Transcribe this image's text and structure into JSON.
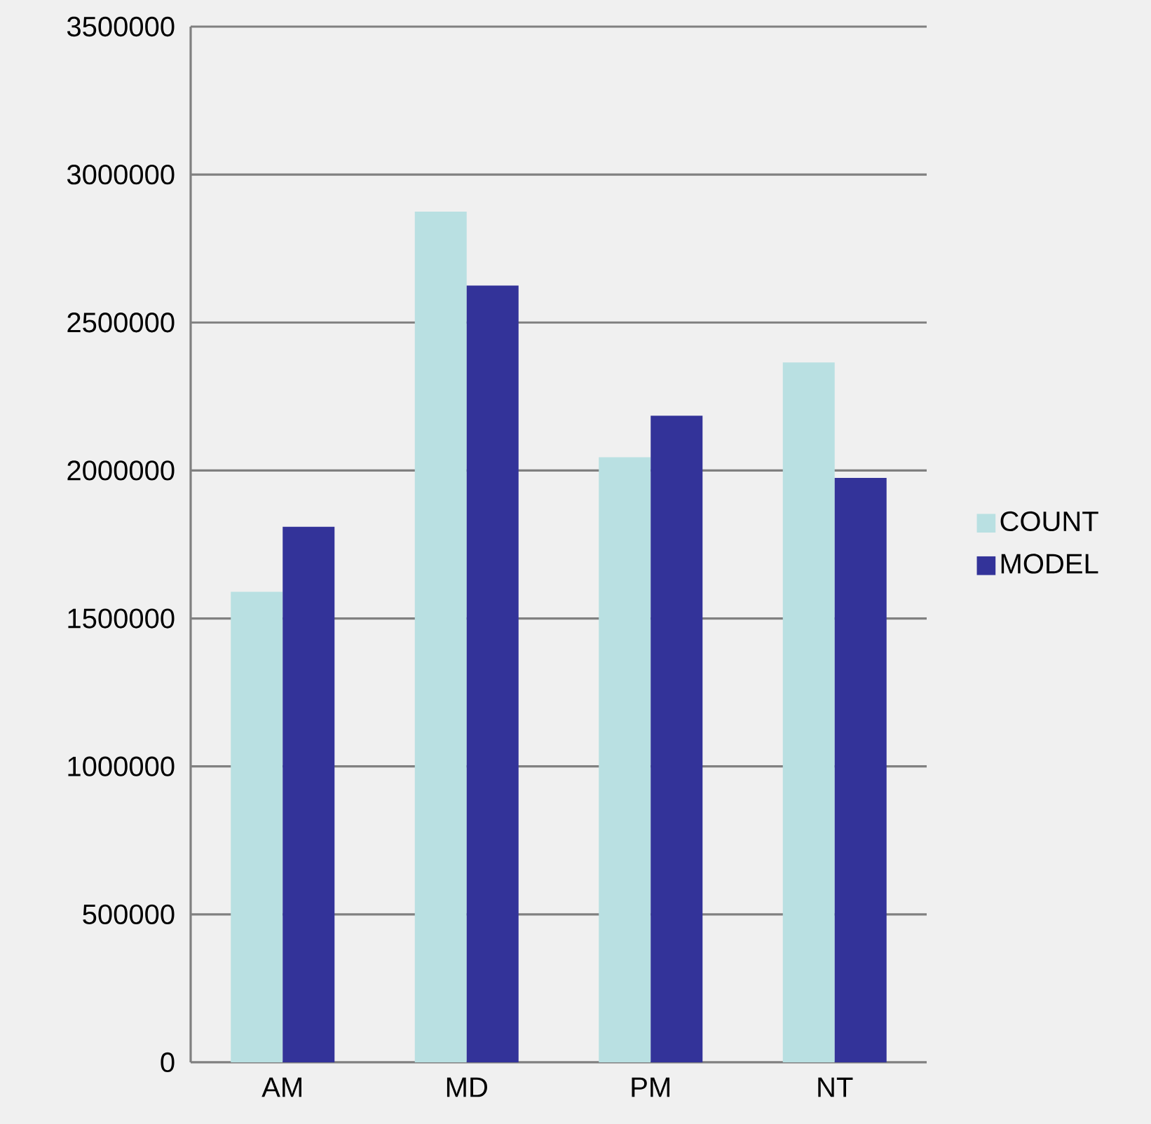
{
  "chart_data": {
    "type": "bar",
    "categories": [
      "AM",
      "MD",
      "PM",
      "NT"
    ],
    "series": [
      {
        "name": "COUNT",
        "color": "#b9e0e2",
        "values": [
          1590000,
          2875000,
          2045000,
          2365000
        ]
      },
      {
        "name": "MODEL",
        "color": "#333399",
        "values": [
          1810000,
          2625000,
          2185000,
          1975000
        ]
      }
    ],
    "ylim": [
      0,
      3500000
    ],
    "yticks": [
      0,
      500000,
      1000000,
      1500000,
      2000000,
      2500000,
      3000000,
      3500000
    ],
    "grid": "y",
    "legend": "right"
  }
}
